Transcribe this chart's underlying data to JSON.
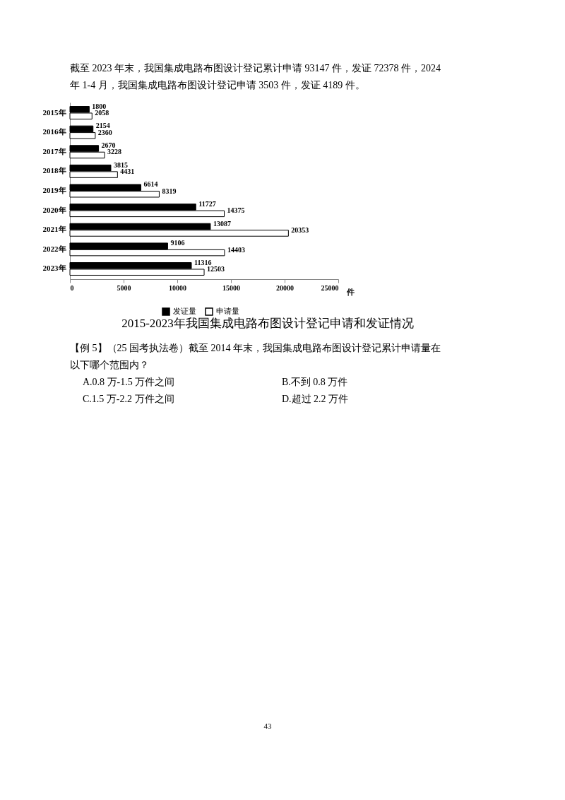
{
  "chart_data": {
    "type": "bar",
    "orientation": "horizontal",
    "title": "2015-2023年我国集成电路布图设计登记申请和发证情况",
    "categories": [
      "2015年",
      "2016年",
      "2017年",
      "2018年",
      "2019年",
      "2020年",
      "2021年",
      "2022年",
      "2023年"
    ],
    "series": [
      {
        "name": "发证量",
        "color": "#000000",
        "values": [
          1800,
          2154,
          2670,
          3815,
          6614,
          11727,
          13087,
          9106,
          11316
        ]
      },
      {
        "name": "申请量",
        "color": "#ffffff",
        "values": [
          2058,
          2360,
          3228,
          4431,
          8319,
          14375,
          20353,
          14403,
          12503
        ]
      }
    ],
    "xlabel": "件",
    "xlim": [
      0,
      25000
    ],
    "xticks": [
      0,
      5000,
      10000,
      15000,
      20000,
      25000
    ],
    "data_labels": true,
    "legend": "bottom",
    "grid": false,
    "annotations": [
      "截至 2023 年末，我国集成电路布图设计登记累计申请 93147 件，发证 72378 件，2024",
      "年 1-4 月，我国集成电路布图设计登记申请 3503 件，发证 4189 件。",
      "【例 5】（25 国考执法卷）截至 2014 年末，我国集成电路布图设计登记累计申请量在",
      "以下哪个范围内？",
      "A.0.8 万-1.5 万件之间",
      "B.不到 0.8 万件",
      "C.1.5 万-2.2 万件之间",
      "D.超过 2.2 万件",
      "43"
    ]
  }
}
